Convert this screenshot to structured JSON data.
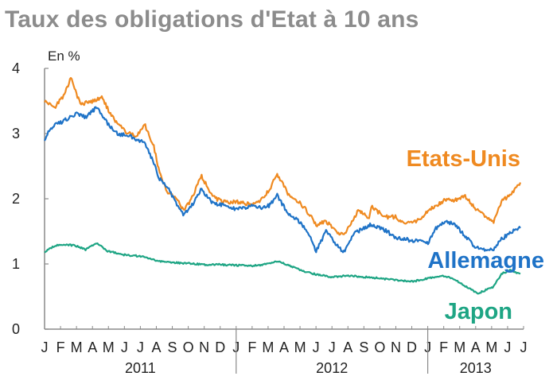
{
  "colors": {
    "title": "#8c8c8c",
    "etats_unis": "#ef8a21",
    "allemagne": "#1f73c7",
    "japon": "#1ea584",
    "axis": "#8a8a8a"
  },
  "chart_data": {
    "type": "line",
    "title": "Taux des obligations d'Etat à 10 ans",
    "ylabel": "En %",
    "ylim": [
      0,
      4
    ],
    "y_ticks": [
      "0",
      "1",
      "2",
      "3",
      "4"
    ],
    "grid": false,
    "x_range": [
      "2011-01-01",
      "2013-07-01"
    ],
    "month_labels": [
      "J",
      "F",
      "M",
      "A",
      "M",
      "J",
      "J",
      "A",
      "S",
      "O",
      "N",
      "D",
      "J",
      "F",
      "M",
      "A",
      "M",
      "J",
      "J",
      "A",
      "S",
      "O",
      "N",
      "D",
      "J",
      "F",
      "M",
      "A",
      "M",
      "J",
      "J"
    ],
    "years": [
      "2011",
      "2012",
      "2013"
    ],
    "series": [
      {
        "name": "Etats-Unis",
        "color": "#ef8a21",
        "x": [
          "2011-01-01",
          "2011-01-20",
          "2011-02-08",
          "2011-02-20",
          "2011-03-10",
          "2011-04-05",
          "2011-04-20",
          "2011-05-10",
          "2011-06-01",
          "2011-06-25",
          "2011-07-10",
          "2011-07-28",
          "2011-08-08",
          "2011-08-22",
          "2011-09-10",
          "2011-09-22",
          "2011-10-05",
          "2011-10-27",
          "2011-11-15",
          "2011-12-05",
          "2011-12-20",
          "2012-01-10",
          "2012-02-01",
          "2012-02-20",
          "2012-03-05",
          "2012-03-19",
          "2012-04-10",
          "2012-05-01",
          "2012-05-20",
          "2012-06-01",
          "2012-06-20",
          "2012-07-10",
          "2012-07-24",
          "2012-08-10",
          "2012-08-20",
          "2012-09-10",
          "2012-09-14",
          "2012-10-10",
          "2012-11-01",
          "2012-11-15",
          "2012-12-10",
          "2012-12-31",
          "2013-01-15",
          "2013-02-05",
          "2013-02-20",
          "2013-03-10",
          "2013-04-01",
          "2013-04-20",
          "2013-05-05",
          "2013-05-20",
          "2013-06-10",
          "2013-06-25"
        ],
        "values": [
          3.5,
          3.4,
          3.6,
          3.85,
          3.45,
          3.5,
          3.55,
          3.25,
          3.05,
          2.95,
          3.15,
          2.8,
          2.4,
          2.1,
          2.0,
          1.82,
          1.95,
          2.35,
          2.05,
          1.95,
          1.95,
          1.95,
          1.9,
          2.0,
          2.15,
          2.38,
          2.05,
          1.95,
          1.75,
          1.6,
          1.65,
          1.5,
          1.43,
          1.68,
          1.82,
          1.7,
          1.88,
          1.72,
          1.72,
          1.62,
          1.66,
          1.8,
          1.9,
          2.0,
          1.98,
          2.05,
          1.85,
          1.72,
          1.65,
          1.95,
          2.1,
          2.25
        ]
      },
      {
        "name": "Allemagne",
        "color": "#1f73c7",
        "x": [
          "2011-01-01",
          "2011-01-15",
          "2011-02-08",
          "2011-03-01",
          "2011-03-20",
          "2011-04-10",
          "2011-05-01",
          "2011-05-20",
          "2011-06-15",
          "2011-07-10",
          "2011-07-28",
          "2011-08-08",
          "2011-08-22",
          "2011-09-10",
          "2011-09-22",
          "2011-10-05",
          "2011-10-27",
          "2011-11-15",
          "2011-12-05",
          "2011-12-20",
          "2012-01-10",
          "2012-02-01",
          "2012-02-20",
          "2012-03-05",
          "2012-03-19",
          "2012-04-10",
          "2012-05-01",
          "2012-05-20",
          "2012-06-01",
          "2012-06-20",
          "2012-07-10",
          "2012-07-24",
          "2012-08-10",
          "2012-08-20",
          "2012-09-10",
          "2012-10-10",
          "2012-11-01",
          "2012-12-10",
          "2012-12-31",
          "2013-01-15",
          "2013-02-05",
          "2013-02-20",
          "2013-03-10",
          "2013-04-01",
          "2013-04-20",
          "2013-05-05",
          "2013-05-20",
          "2013-06-10",
          "2013-06-25"
        ],
        "values": [
          2.92,
          3.1,
          3.2,
          3.3,
          3.25,
          3.4,
          3.15,
          3.0,
          2.95,
          2.85,
          2.55,
          2.3,
          2.2,
          1.9,
          1.75,
          1.85,
          2.15,
          1.95,
          1.9,
          1.85,
          1.85,
          1.9,
          1.85,
          1.9,
          2.05,
          1.75,
          1.65,
          1.45,
          1.2,
          1.5,
          1.3,
          1.18,
          1.45,
          1.5,
          1.6,
          1.52,
          1.4,
          1.35,
          1.32,
          1.55,
          1.65,
          1.6,
          1.45,
          1.25,
          1.2,
          1.22,
          1.38,
          1.5,
          1.55
        ]
      },
      {
        "name": "Japon",
        "color": "#1ea584",
        "x": [
          "2011-01-01",
          "2011-01-20",
          "2011-02-10",
          "2011-03-01",
          "2011-03-20",
          "2011-04-10",
          "2011-05-01",
          "2011-06-01",
          "2011-07-01",
          "2011-08-01",
          "2011-09-01",
          "2011-10-01",
          "2011-11-01",
          "2011-12-01",
          "2012-01-01",
          "2012-02-01",
          "2012-03-01",
          "2012-03-20",
          "2012-04-10",
          "2012-05-10",
          "2012-06-01",
          "2012-07-01",
          "2012-08-01",
          "2012-09-01",
          "2012-10-01",
          "2012-11-01",
          "2012-12-01",
          "2013-01-01",
          "2013-02-01",
          "2013-03-01",
          "2013-03-20",
          "2013-04-05",
          "2013-04-20",
          "2013-05-05",
          "2013-05-20",
          "2013-06-05",
          "2013-06-25"
        ],
        "values": [
          1.18,
          1.28,
          1.3,
          1.28,
          1.22,
          1.32,
          1.2,
          1.14,
          1.12,
          1.05,
          1.02,
          1.01,
          0.99,
          0.99,
          0.98,
          0.97,
          1.0,
          1.04,
          0.98,
          0.88,
          0.84,
          0.8,
          0.82,
          0.8,
          0.78,
          0.75,
          0.73,
          0.78,
          0.82,
          0.72,
          0.62,
          0.55,
          0.6,
          0.65,
          0.85,
          0.9,
          0.85
        ]
      }
    ]
  }
}
